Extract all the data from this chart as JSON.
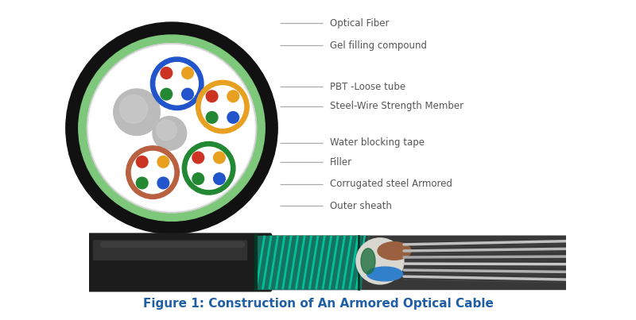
{
  "bg_color": "#ffffff",
  "figure_caption": "Figure 1: Construction of An Armored Optical Cable",
  "caption_color": "#1f5fa6",
  "caption_fontsize": 11,
  "labels": [
    "Optical Fiber",
    "Gel filling compound",
    "PBT -Loose tube",
    "Steel-Wire Strength Member",
    "Water blocking tape",
    "Filler",
    "Corrugated steel Armored",
    "Outer sheath"
  ],
  "label_color": "#555555",
  "label_fontsize": 8.5,
  "outer_black_color": "#111111",
  "green_ring_color": "#7dc87a",
  "white_inner_color": "#ffffff",
  "tube_colors_cross": [
    "#2255cc",
    "#e8a020",
    "#c8512a",
    "#228833"
  ],
  "filler_color": "#bbbbbb",
  "dot_colors_cross": [
    "#cc3322",
    "#e8a020",
    "#228833",
    "#2255cc"
  ]
}
